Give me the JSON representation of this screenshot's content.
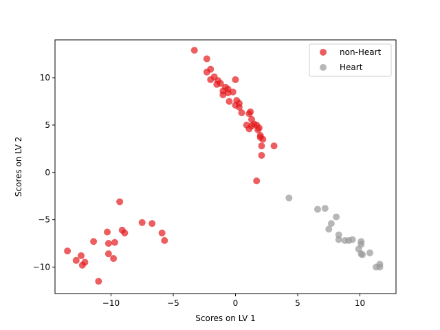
{
  "chart_data": {
    "type": "scatter",
    "title": "",
    "xlabel": "Scores on LV 1",
    "ylabel": "Scores on LV 2",
    "xlim": [
      -14.5,
      12.9
    ],
    "ylim": [
      -12.8,
      14.0
    ],
    "xticks": [
      -10,
      -5,
      0,
      5,
      10
    ],
    "yticks": [
      -10,
      -5,
      0,
      5,
      10
    ],
    "grid": false,
    "legend_position": "top-right",
    "series": [
      {
        "name": "non-Heart",
        "color": "#e41a1c",
        "points": [
          [
            -3.3,
            12.9
          ],
          [
            -2.3,
            12.0
          ],
          [
            -2.3,
            10.6
          ],
          [
            -2.0,
            10.9
          ],
          [
            -2.0,
            9.8
          ],
          [
            -1.7,
            10.1
          ],
          [
            -1.4,
            9.7
          ],
          [
            -1.5,
            9.3
          ],
          [
            -1.2,
            9.4
          ],
          [
            -1.0,
            8.6
          ],
          [
            -1.0,
            8.2
          ],
          [
            -0.8,
            9.0
          ],
          [
            -0.6,
            8.8
          ],
          [
            -0.6,
            8.4
          ],
          [
            -0.5,
            7.5
          ],
          [
            -0.2,
            8.5
          ],
          [
            0.0,
            9.8
          ],
          [
            0.0,
            7.1
          ],
          [
            0.1,
            7.6
          ],
          [
            0.3,
            7.3
          ],
          [
            0.3,
            6.9
          ],
          [
            0.5,
            6.3
          ],
          [
            0.9,
            5.0
          ],
          [
            1.1,
            4.6
          ],
          [
            1.1,
            6.2
          ],
          [
            1.2,
            6.4
          ],
          [
            1.3,
            5.6
          ],
          [
            1.3,
            4.9
          ],
          [
            1.5,
            5.1
          ],
          [
            1.7,
            5.0
          ],
          [
            1.8,
            4.5
          ],
          [
            1.9,
            4.7
          ],
          [
            2.0,
            3.9
          ],
          [
            2.0,
            3.7
          ],
          [
            2.1,
            2.8
          ],
          [
            2.1,
            1.8
          ],
          [
            2.2,
            3.5
          ],
          [
            3.1,
            2.8
          ],
          [
            1.7,
            -0.9
          ],
          [
            -13.5,
            -8.3
          ],
          [
            -12.8,
            -9.3
          ],
          [
            -12.4,
            -8.8
          ],
          [
            -12.3,
            -9.8
          ],
          [
            -12.1,
            -9.5
          ],
          [
            -11.4,
            -7.3
          ],
          [
            -11.0,
            -11.5
          ],
          [
            -10.3,
            -6.3
          ],
          [
            -10.2,
            -7.5
          ],
          [
            -10.2,
            -8.6
          ],
          [
            -9.8,
            -9.1
          ],
          [
            -9.7,
            -7.4
          ],
          [
            -9.3,
            -3.1
          ],
          [
            -9.1,
            -6.1
          ],
          [
            -8.9,
            -6.4
          ],
          [
            -7.5,
            -5.3
          ],
          [
            -6.7,
            -5.4
          ],
          [
            -5.9,
            -6.4
          ],
          [
            -5.7,
            -7.2
          ]
        ]
      },
      {
        "name": "Heart",
        "color": "#999999",
        "points": [
          [
            4.3,
            -2.7
          ],
          [
            6.6,
            -3.9
          ],
          [
            7.2,
            -3.8
          ],
          [
            7.5,
            -6.0
          ],
          [
            7.7,
            -5.4
          ],
          [
            8.1,
            -4.7
          ],
          [
            8.3,
            -6.6
          ],
          [
            8.3,
            -7.1
          ],
          [
            8.8,
            -7.2
          ],
          [
            9.1,
            -7.2
          ],
          [
            9.4,
            -7.1
          ],
          [
            9.9,
            -8.1
          ],
          [
            10.1,
            -7.3
          ],
          [
            10.1,
            -7.6
          ],
          [
            10.1,
            -8.6
          ],
          [
            10.2,
            -8.7
          ],
          [
            10.8,
            -8.5
          ],
          [
            11.3,
            -10.0
          ],
          [
            11.6,
            -9.7
          ],
          [
            11.6,
            -10.0
          ]
        ]
      }
    ]
  }
}
